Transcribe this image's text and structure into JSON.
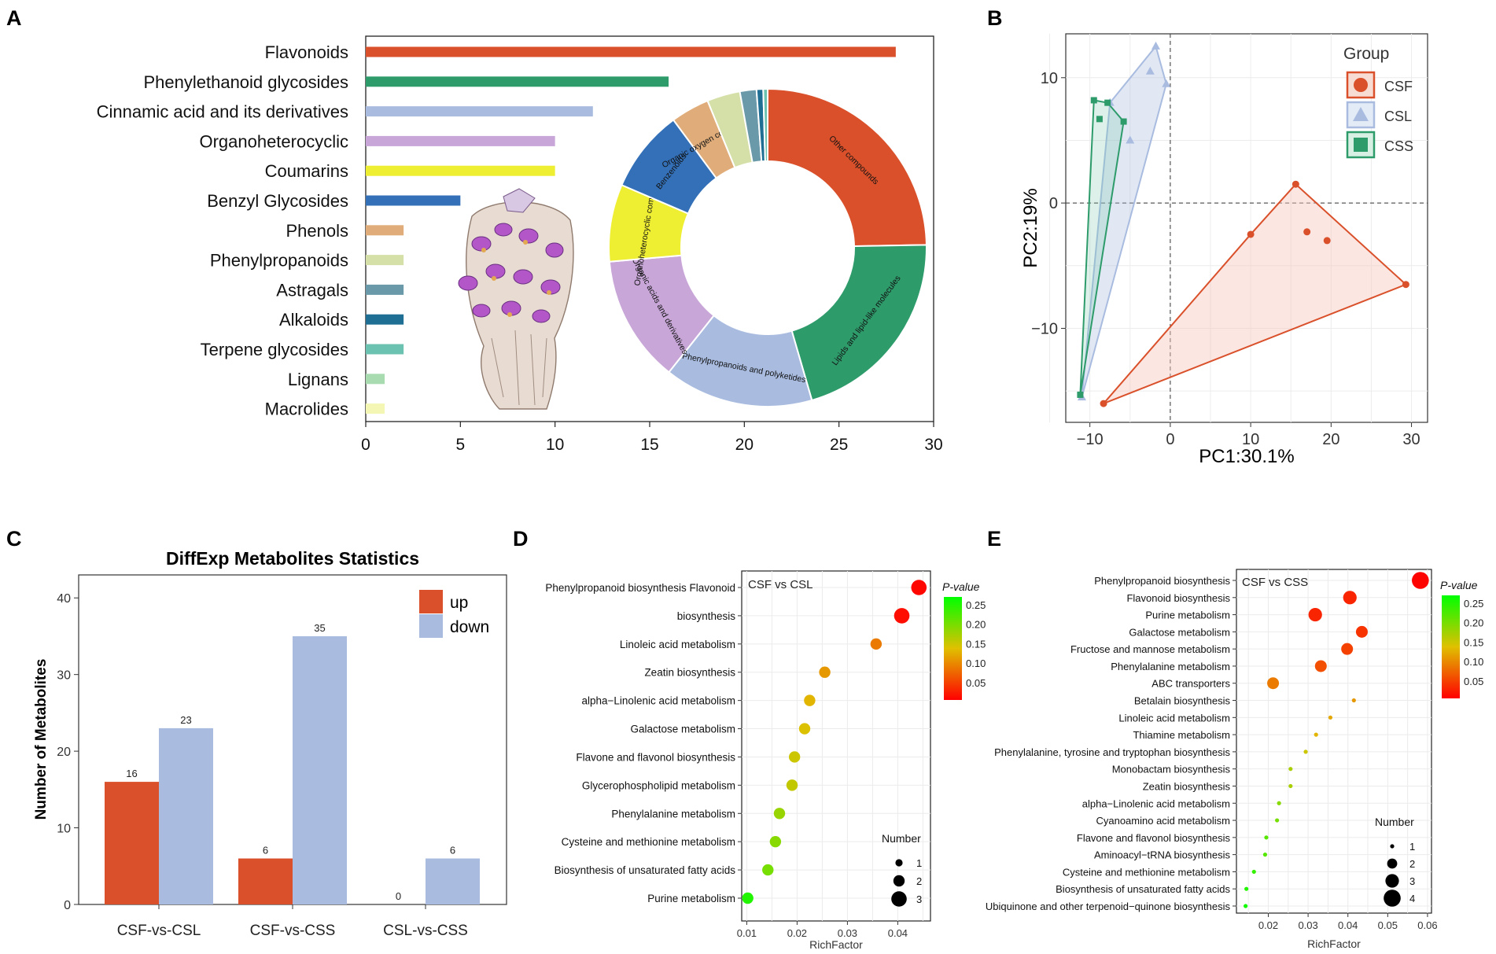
{
  "panels": {
    "a": "A",
    "b": "B",
    "c": "C",
    "d": "D",
    "e": "E"
  },
  "colors": {
    "csf": "#d9502a",
    "csl": "#a9bce0",
    "css": "#2e9b6b",
    "up": "#d9502a",
    "down": "#a9bce0"
  },
  "chart_data": [
    {
      "id": "A-bar",
      "type": "bar",
      "orientation": "horizontal",
      "title": "",
      "xlabel": "",
      "ylabel": "",
      "xlim": [
        0,
        30
      ],
      "xticks": [
        0,
        5,
        10,
        15,
        20,
        25,
        30
      ],
      "categories": [
        "Flavonoids",
        "Phenylethanoid glycosides",
        "Cinnamic acid and its derivatives",
        "Organoheterocyclic",
        "Coumarins",
        "Benzyl Glycosides",
        "Phenols",
        "Phenylpropanoids",
        "Astragals",
        "Alkaloids",
        "Terpene glycosides",
        "Lignans",
        "Macrolides"
      ],
      "values": [
        28,
        16,
        12,
        10,
        10,
        5,
        2,
        2,
        2,
        2,
        2,
        1,
        1
      ],
      "bar_colors": [
        "#d9502a",
        "#2e9b6b",
        "#a9bce0",
        "#c8a6d8",
        "#eeee33",
        "#3370b8",
        "#e0ad7a",
        "#d5e0a8",
        "#6a9aaa",
        "#1f6e94",
        "#6cc2b0",
        "#a8dcb0",
        "#f3f7b3"
      ]
    },
    {
      "id": "A-donut",
      "type": "pie",
      "style": "donut",
      "labels": [
        "Other compounds",
        "Lipids and lipid-like molecules",
        "Phenylpropanoids and polyketides",
        "Organic acids and derivatives",
        "Organoheterocyclic compounds",
        "Benzenoids",
        "Organic oxygen compounds",
        "",
        "",
        "",
        ""
      ],
      "values": [
        22,
        18.5,
        13.5,
        11.5,
        7,
        7.5,
        3.5,
        3,
        1.5,
        0.6,
        0.4
      ],
      "slice_colors": [
        "#d9502a",
        "#2e9b6b",
        "#a9bce0",
        "#c8a6d8",
        "#eeee33",
        "#3370b8",
        "#e0ad7a",
        "#d5e0a8",
        "#6a9aaa",
        "#1f6e94",
        "#6cc2b0"
      ]
    },
    {
      "id": "B",
      "type": "scatter",
      "title": "",
      "xlabel": "PC1:30.1%",
      "ylabel": "PC2:19%",
      "xlim": [
        -13,
        32
      ],
      "ylim": [
        -17.5,
        13.5
      ],
      "xticks": [
        -10,
        0,
        10,
        20,
        30
      ],
      "yticks": [
        -10,
        0,
        10
      ],
      "legend_title": "Group",
      "series": [
        {
          "name": "CSF",
          "marker": "circle",
          "points": [
            [
              15.6,
              1.5
            ],
            [
              29.3,
              -6.5
            ],
            [
              -8.3,
              -16
            ],
            [
              10,
              -2.5
            ],
            [
              17,
              -2.3
            ],
            [
              19.5,
              -3
            ]
          ],
          "hull": [
            [
              15.6,
              1.5
            ],
            [
              29.3,
              -6.5
            ],
            [
              -8.3,
              -16
            ],
            [
              10,
              -2.5
            ]
          ]
        },
        {
          "name": "CSL",
          "marker": "triangle",
          "points": [
            [
              -1.8,
              12.5
            ],
            [
              -2.5,
              10.5
            ],
            [
              -0.5,
              9.5
            ],
            [
              -7.5,
              8
            ],
            [
              -5,
              5
            ],
            [
              -11,
              -15.5
            ]
          ],
          "hull": [
            [
              -1.8,
              12.5
            ],
            [
              -0.5,
              9.5
            ],
            [
              -11,
              -15.5
            ],
            [
              -7.5,
              8
            ]
          ]
        },
        {
          "name": "CSS",
          "marker": "square",
          "points": [
            [
              -9.5,
              8.2
            ],
            [
              -7.8,
              8
            ],
            [
              -5.8,
              6.5
            ],
            [
              -8.8,
              6.7
            ],
            [
              -11.2,
              -15.3
            ]
          ],
          "hull": [
            [
              -9.5,
              8.2
            ],
            [
              -7.8,
              8
            ],
            [
              -5.8,
              6.5
            ],
            [
              -11.2,
              -15.3
            ]
          ]
        }
      ]
    },
    {
      "id": "C",
      "type": "bar",
      "title": "DiffExp Metabolites Statistics",
      "xlabel": "",
      "ylabel": "Number of Metabolites",
      "ylim": [
        0,
        43
      ],
      "yticks": [
        0,
        10,
        20,
        30,
        40
      ],
      "categories": [
        "CSF-vs-CSL",
        "CSF-vs-CSS",
        "CSL-vs-CSS"
      ],
      "series": [
        {
          "name": "up",
          "values": [
            16,
            6,
            0
          ]
        },
        {
          "name": "down",
          "values": [
            23,
            35,
            6
          ]
        }
      ]
    },
    {
      "id": "D",
      "type": "scatter",
      "title": "CSF vs CSL",
      "xlabel": "RichFactor",
      "ylabel": "",
      "xlim": [
        0.009,
        0.0465
      ],
      "xticks": [
        0.01,
        0.02,
        0.03,
        0.04
      ],
      "xtick_labels": [
        "0.01",
        "0.02",
        "0.03",
        "0.04"
      ],
      "size_legend_title": "Number",
      "size_values": [
        1,
        2,
        3
      ],
      "color_legend_title": "P-value",
      "color_ticks": [
        0.25,
        0.2,
        0.15,
        0.1,
        0.05
      ],
      "color_tick_labels": [
        "0.25",
        "0.20",
        "0.15",
        "0.10",
        "0.05"
      ],
      "color_range": [
        0.005,
        0.27
      ],
      "categories": [
        "Phenylpropanoid biosynthesis Flavonoid",
        "biosynthesis",
        "Linoleic acid metabolism",
        "Zeatin biosynthesis",
        "alpha−Linolenic acid metabolism",
        "Galactose metabolism",
        "Flavone and flavonol biosynthesis",
        "Glycerophospholipid metabolism",
        "Phenylalanine metabolism",
        "Cysteine and methionine metabolism",
        "Biosynthesis of unsaturated fatty acids",
        "Purine metabolism"
      ],
      "rich": [
        0.0442,
        0.0408,
        0.0357,
        0.0255,
        0.0225,
        0.0215,
        0.0195,
        0.019,
        0.0165,
        0.0157,
        0.0142,
        0.0102
      ],
      "number": [
        3,
        3,
        2,
        2,
        2,
        2,
        2,
        2,
        2,
        2,
        2,
        2
      ],
      "pvalue": [
        0.01,
        0.015,
        0.09,
        0.11,
        0.13,
        0.14,
        0.15,
        0.155,
        0.18,
        0.19,
        0.2,
        0.25
      ]
    },
    {
      "id": "E",
      "type": "scatter",
      "title": "CSF vs CSS",
      "xlabel": "RichFactor",
      "ylabel": "",
      "xlim": [
        0.012,
        0.061
      ],
      "xticks": [
        0.02,
        0.03,
        0.04,
        0.05,
        0.06
      ],
      "xtick_labels": [
        "0.02",
        "0.03",
        "0.04",
        "0.05",
        "0.06"
      ],
      "size_legend_title": "Number",
      "size_values": [
        1,
        2,
        3,
        4
      ],
      "color_legend_title": "P-value",
      "color_ticks": [
        0.25,
        0.2,
        0.15,
        0.1,
        0.05
      ],
      "color_tick_labels": [
        "0.25",
        "0.20",
        "0.15",
        "0.10",
        "0.05"
      ],
      "color_range": [
        0.005,
        0.27
      ],
      "categories": [
        "Phenylpropanoid biosynthesis",
        "Flavonoid biosynthesis",
        "Purine metabolism",
        "Galactose metabolism",
        "Fructose and mannose metabolism",
        "Phenylalanine metabolism",
        "ABC transporters",
        "Betalain biosynthesis",
        "Linoleic acid metabolism",
        "Thiamine metabolism",
        "Phenylalanine, tyrosine and tryptophan biosynthesis",
        "Monobactam biosynthesis",
        "Zeatin biosynthesis",
        "alpha−Linolenic acid metabolism",
        "Cyanoamino acid metabolism",
        "Flavone and flavonol biosynthesis",
        "Aminoacyl−tRNA biosynthesis",
        "Cysteine and methionine metabolism",
        "Biosynthesis of unsaturated fatty acids",
        "Ubiquinone and other terpenoid−quinone biosynthesis"
      ],
      "rich": [
        0.0582,
        0.0405,
        0.0318,
        0.0435,
        0.0398,
        0.0332,
        0.0212,
        0.0415,
        0.0356,
        0.032,
        0.0294,
        0.0256,
        0.0256,
        0.0227,
        0.0222,
        0.0195,
        0.0192,
        0.0164,
        0.0145,
        0.0143
      ],
      "number": [
        4,
        3,
        3,
        2.5,
        2.5,
        2.5,
        2.5,
        1,
        1,
        1,
        1,
        1,
        1,
        1,
        1,
        1,
        1,
        1,
        1,
        1
      ],
      "pvalue": [
        0.008,
        0.03,
        0.03,
        0.04,
        0.05,
        0.06,
        0.09,
        0.11,
        0.12,
        0.13,
        0.15,
        0.17,
        0.17,
        0.19,
        0.2,
        0.22,
        0.22,
        0.24,
        0.25,
        0.26
      ]
    }
  ]
}
